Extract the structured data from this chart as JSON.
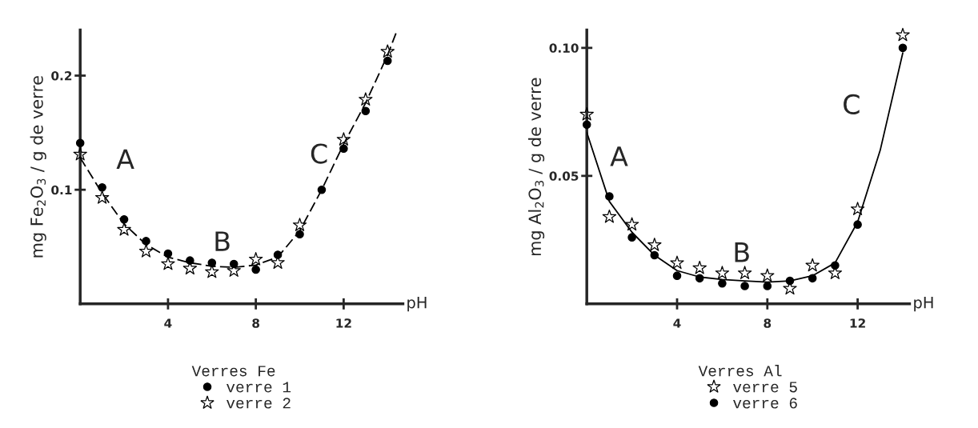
{
  "chart_data": [
    {
      "type": "scatter",
      "xlabel": "pH",
      "ylabel": "mg Fe$_{2}$O$_{3}$ / g de verre",
      "legend_title": "Verres Fe",
      "legend": "bottom",
      "grid": false,
      "x": [
        0,
        1,
        2,
        3,
        4,
        5,
        6,
        7,
        8,
        9,
        10,
        11,
        12,
        13,
        14
      ],
      "xlim": [
        0,
        14.7
      ],
      "xticks": [
        4,
        8,
        12
      ],
      "ylim": [
        0,
        0.24
      ],
      "yticks": [
        {
          "value": 0.1,
          "label": "0.1"
        },
        {
          "value": 0.2,
          "label": "0.2"
        }
      ],
      "series": [
        {
          "name": "verre 1",
          "color": "#000000",
          "marker": "circle",
          "values": [
            0.141,
            0.102,
            0.074,
            0.055,
            0.044,
            0.038,
            0.036,
            0.035,
            0.03,
            0.043,
            0.061,
            0.1,
            0.136,
            0.169,
            0.213
          ]
        },
        {
          "name": "verre 2",
          "color": "#000000",
          "marker": "star",
          "values": [
            0.131,
            0.093,
            0.065,
            0.046,
            0.035,
            0.031,
            0.028,
            0.029,
            0.039,
            0.036,
            0.069,
            null,
            0.144,
            0.179,
            0.221
          ]
        },
        {
          "type": "line",
          "color": "#000000",
          "marker": "none",
          "line_style": "dashed",
          "x": [
            0,
            1,
            2,
            3,
            4,
            5,
            6,
            7,
            8,
            9,
            10,
            11,
            12,
            13,
            14,
            14.4
          ],
          "values": [
            0.128,
            0.097,
            0.07,
            0.052,
            0.041,
            0.036,
            0.033,
            0.032,
            0.034,
            0.041,
            0.064,
            0.1,
            0.14,
            0.176,
            0.218,
            0.238
          ]
        }
      ],
      "annotations": [
        "A",
        "B",
        "C"
      ]
    },
    {
      "type": "scatter",
      "xlabel": "pH",
      "ylabel": "mg Al$_{2}$O$_{3}$ / g de verre",
      "legend_title": "Verres Al",
      "legend": "bottom",
      "grid": false,
      "x": [
        0,
        1,
        2,
        3,
        4,
        5,
        6,
        7,
        8,
        9,
        10,
        11,
        12,
        14
      ],
      "xlim": [
        0,
        14.3
      ],
      "xticks": [
        4,
        8,
        12
      ],
      "ylim": [
        0,
        0.107
      ],
      "yticks": [
        {
          "value": 0.05,
          "label": "0.05"
        },
        {
          "value": 0.1,
          "label": "0.10"
        }
      ],
      "series": [
        {
          "name": "verre 5",
          "color": "#000000",
          "marker": "star",
          "values": [
            0.074,
            0.034,
            0.031,
            0.023,
            0.016,
            0.014,
            0.012,
            0.012,
            0.011,
            0.006,
            0.015,
            0.012,
            0.037,
            0.105
          ]
        },
        {
          "name": "verre 6",
          "color": "#000000",
          "marker": "circle",
          "values": [
            0.07,
            0.042,
            0.026,
            0.019,
            0.011,
            0.01,
            0.008,
            0.007,
            0.007,
            0.009,
            0.01,
            0.015,
            0.031,
            0.1
          ]
        },
        {
          "type": "line",
          "color": "#000000",
          "marker": "none",
          "line_style": "solid",
          "x": [
            0,
            1,
            2,
            3,
            4,
            5,
            6,
            7,
            8,
            9,
            10,
            11,
            12,
            13,
            14
          ],
          "values": [
            0.067,
            0.04,
            0.028,
            0.019,
            0.013,
            0.0105,
            0.0095,
            0.009,
            0.0085,
            0.009,
            0.011,
            0.016,
            0.032,
            0.06,
            0.098
          ]
        }
      ],
      "annotations": [
        "A",
        "B",
        "C"
      ]
    }
  ]
}
